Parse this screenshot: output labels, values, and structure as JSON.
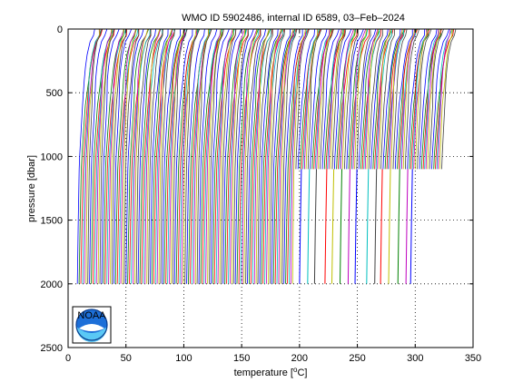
{
  "chart_data": {
    "type": "line",
    "title": "WMO ID 5902486, internal ID 6589, 03–Feb–2024",
    "xlabel_pre": "temperature [",
    "xlabel_sup": "o",
    "xlabel_post": "C]",
    "ylabel": "pressure [dbar]",
    "xlim": [
      0,
      350
    ],
    "ylim": [
      2500,
      0
    ],
    "y_reversed": true,
    "xticks": [
      0,
      50,
      100,
      150,
      200,
      250,
      300,
      350
    ],
    "yticks": [
      0,
      500,
      1000,
      1500,
      2000,
      2500
    ],
    "grid": "dotted",
    "series_description": "waterfall of temperature profiles, each profile offset horizontally; profiles start near x=8 and step by about 1.5",
    "profile_offsets": {
      "start": 8,
      "step": 1.5,
      "count": 210
    },
    "profile_shape": {
      "pressure": [
        0,
        50,
        100,
        200,
        300,
        400,
        600,
        800,
        1000,
        1100,
        1500,
        2000
      ],
      "temperature_delta": [
        15,
        14,
        11,
        8.5,
        7,
        6,
        4.5,
        3.2,
        2,
        1.6,
        0.8,
        0
      ],
      "deep_profiles_max_pressure": 2000,
      "shallow_profiles_from_x": 195,
      "shallow_profiles_max_pressure": 1100,
      "sparse_deep_profiles_x": [
        200,
        207,
        213,
        222,
        228,
        235,
        242,
        248,
        258,
        265,
        270,
        277,
        285,
        292,
        296
      ]
    },
    "series_colors": [
      "#0000ff",
      "#008000",
      "#ff0000",
      "#00bfbf",
      "#bf00bf",
      "#bfbf00",
      "#404040"
    ]
  },
  "logo": {
    "text": "NOAA"
  }
}
